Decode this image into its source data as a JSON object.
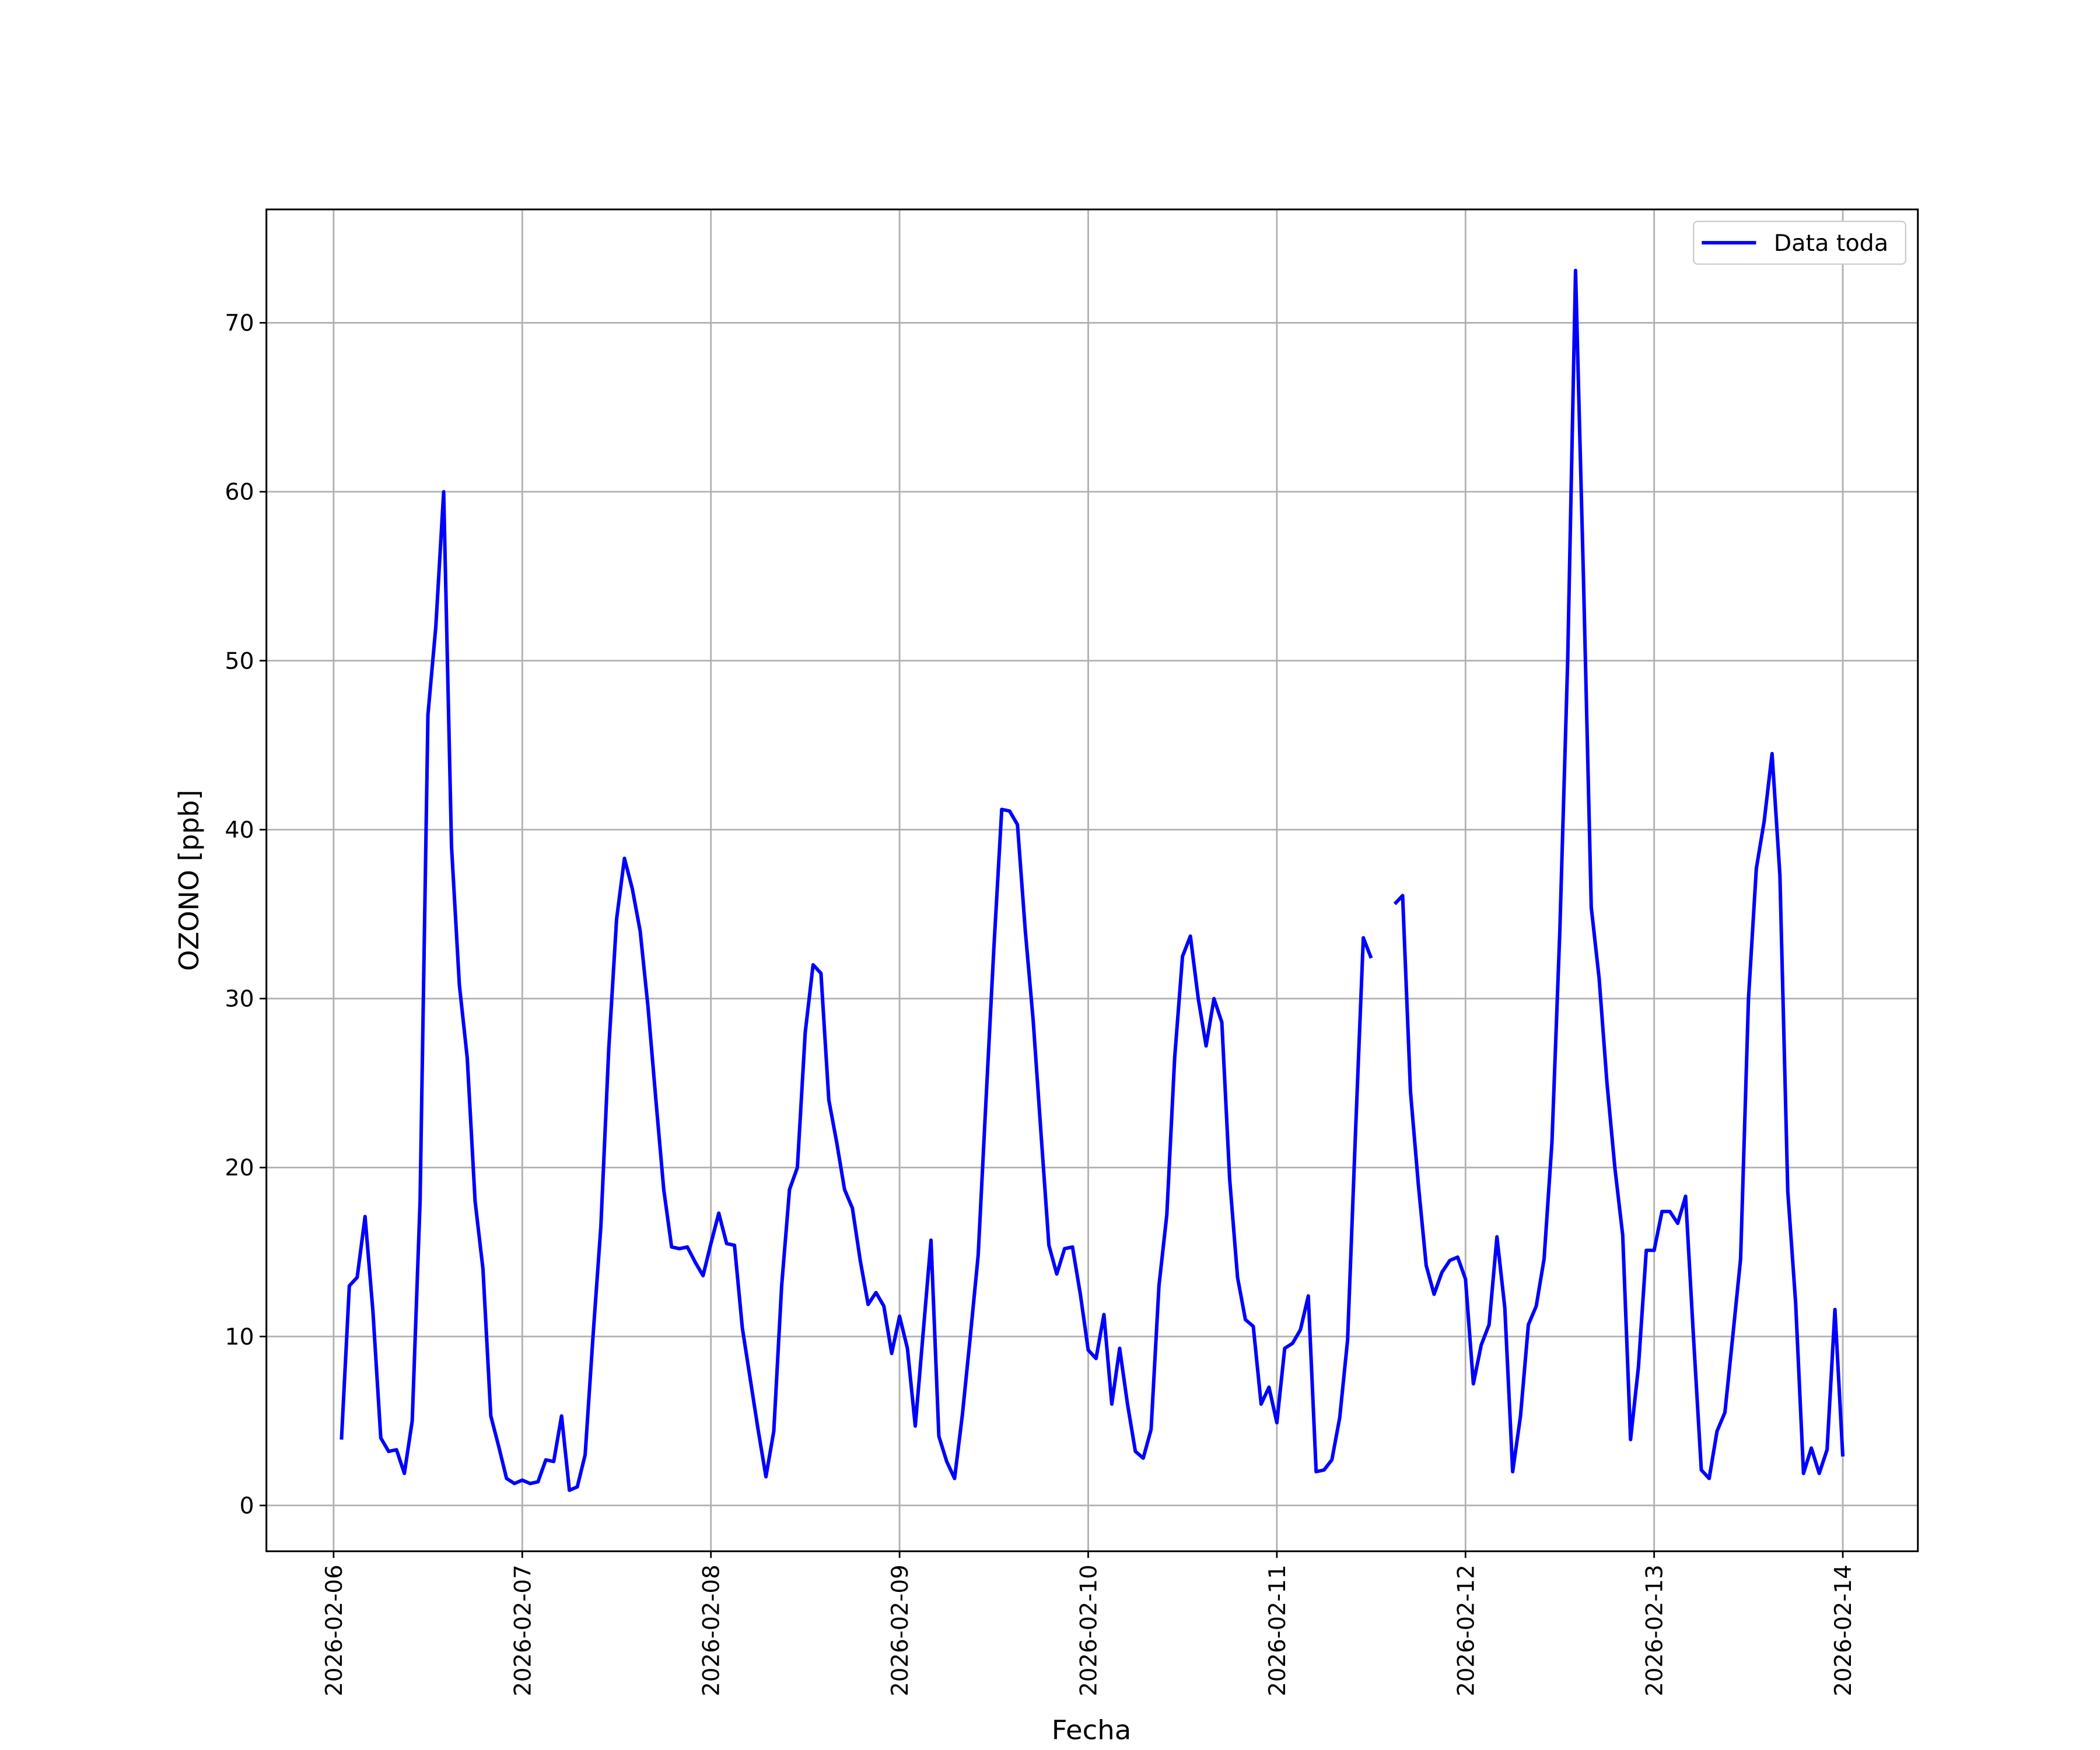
{
  "chart_data": {
    "type": "line",
    "xlabel": "Fecha",
    "ylabel": "OZONO [ppb]",
    "x": [
      "2026-02-06 01:00",
      "2026-02-06 02:00",
      "2026-02-06 03:00",
      "2026-02-06 04:00",
      "2026-02-06 05:00",
      "2026-02-06 06:00",
      "2026-02-06 07:00",
      "2026-02-06 08:00",
      "2026-02-06 09:00",
      "2026-02-06 10:00",
      "2026-02-06 11:00",
      "2026-02-06 12:00",
      "2026-02-06 13:00",
      "2026-02-06 14:00",
      "2026-02-06 15:00",
      "2026-02-06 16:00",
      "2026-02-06 17:00",
      "2026-02-06 18:00",
      "2026-02-06 19:00",
      "2026-02-06 20:00",
      "2026-02-06 21:00",
      "2026-02-06 22:00",
      "2026-02-06 23:00",
      "2026-02-07 00:00",
      "2026-02-07 01:00",
      "2026-02-07 02:00",
      "2026-02-07 03:00",
      "2026-02-07 04:00",
      "2026-02-07 05:00",
      "2026-02-07 06:00",
      "2026-02-07 07:00",
      "2026-02-07 08:00",
      "2026-02-07 09:00",
      "2026-02-07 10:00",
      "2026-02-07 11:00",
      "2026-02-07 12:00",
      "2026-02-07 13:00",
      "2026-02-07 14:00",
      "2026-02-07 15:00",
      "2026-02-07 16:00",
      "2026-02-07 17:00",
      "2026-02-07 18:00",
      "2026-02-07 19:00",
      "2026-02-07 20:00",
      "2026-02-07 21:00",
      "2026-02-07 22:00",
      "2026-02-07 23:00",
      "2026-02-08 00:00",
      "2026-02-08 01:00",
      "2026-02-08 02:00",
      "2026-02-08 03:00",
      "2026-02-08 04:00",
      "2026-02-08 05:00",
      "2026-02-08 06:00",
      "2026-02-08 07:00",
      "2026-02-08 08:00",
      "2026-02-08 09:00",
      "2026-02-08 10:00",
      "2026-02-08 11:00",
      "2026-02-08 12:00",
      "2026-02-08 13:00",
      "2026-02-08 14:00",
      "2026-02-08 15:00",
      "2026-02-08 16:00",
      "2026-02-08 17:00",
      "2026-02-08 18:00",
      "2026-02-08 19:00",
      "2026-02-08 20:00",
      "2026-02-08 21:00",
      "2026-02-08 22:00",
      "2026-02-08 23:00",
      "2026-02-09 00:00",
      "2026-02-09 01:00",
      "2026-02-09 02:00",
      "2026-02-09 03:00",
      "2026-02-09 04:00",
      "2026-02-09 05:00",
      "2026-02-09 06:00",
      "2026-02-09 07:00",
      "2026-02-09 08:00",
      "2026-02-09 09:00",
      "2026-02-09 10:00",
      "2026-02-09 11:00",
      "2026-02-09 12:00",
      "2026-02-09 13:00",
      "2026-02-09 14:00",
      "2026-02-09 15:00",
      "2026-02-09 16:00",
      "2026-02-09 17:00",
      "2026-02-09 18:00",
      "2026-02-09 19:00",
      "2026-02-09 20:00",
      "2026-02-09 21:00",
      "2026-02-09 22:00",
      "2026-02-09 23:00",
      "2026-02-10 00:00",
      "2026-02-10 01:00",
      "2026-02-10 02:00",
      "2026-02-10 03:00",
      "2026-02-10 04:00",
      "2026-02-10 05:00",
      "2026-02-10 06:00",
      "2026-02-10 07:00",
      "2026-02-10 08:00",
      "2026-02-10 09:00",
      "2026-02-10 10:00",
      "2026-02-10 11:00",
      "2026-02-10 12:00",
      "2026-02-10 13:00",
      "2026-02-10 14:00",
      "2026-02-10 15:00",
      "2026-02-10 16:00",
      "2026-02-10 17:00",
      "2026-02-10 18:00",
      "2026-02-10 19:00",
      "2026-02-10 20:00",
      "2026-02-10 21:00",
      "2026-02-10 22:00",
      "2026-02-10 23:00",
      "2026-02-11 00:00",
      "2026-02-11 01:00",
      "2026-02-11 02:00",
      "2026-02-11 03:00",
      "2026-02-11 04:00",
      "2026-02-11 05:00",
      "2026-02-11 06:00",
      "2026-02-11 07:00",
      "2026-02-11 08:00",
      "2026-02-11 09:00",
      "2026-02-11 10:00",
      "2026-02-11 11:00",
      "2026-02-11 12:00",
      "2026-02-11 13:00",
      "2026-02-11 14:00",
      "2026-02-11 15:00",
      "2026-02-11 16:00",
      "2026-02-11 17:00",
      "2026-02-11 18:00",
      "2026-02-11 19:00",
      "2026-02-11 20:00",
      "2026-02-11 21:00",
      "2026-02-11 22:00",
      "2026-02-11 23:00",
      "2026-02-12 00:00",
      "2026-02-12 01:00",
      "2026-02-12 02:00",
      "2026-02-12 03:00",
      "2026-02-12 04:00",
      "2026-02-12 05:00",
      "2026-02-12 06:00",
      "2026-02-12 07:00",
      "2026-02-12 08:00",
      "2026-02-12 09:00",
      "2026-02-12 10:00",
      "2026-02-12 11:00",
      "2026-02-12 12:00",
      "2026-02-12 13:00",
      "2026-02-12 14:00",
      "2026-02-12 15:00",
      "2026-02-12 16:00",
      "2026-02-12 17:00",
      "2026-02-12 18:00",
      "2026-02-12 19:00",
      "2026-02-12 20:00",
      "2026-02-12 21:00",
      "2026-02-12 22:00",
      "2026-02-12 23:00",
      "2026-02-13 00:00",
      "2026-02-13 01:00",
      "2026-02-13 02:00",
      "2026-02-13 03:00",
      "2026-02-13 04:00",
      "2026-02-13 05:00",
      "2026-02-13 06:00",
      "2026-02-13 07:00",
      "2026-02-13 08:00",
      "2026-02-13 09:00",
      "2026-02-13 10:00",
      "2026-02-13 11:00",
      "2026-02-13 12:00",
      "2026-02-13 13:00",
      "2026-02-13 14:00",
      "2026-02-13 15:00",
      "2026-02-13 16:00",
      "2026-02-13 17:00",
      "2026-02-13 18:00",
      "2026-02-13 19:00",
      "2026-02-13 20:00",
      "2026-02-13 21:00",
      "2026-02-13 22:00",
      "2026-02-13 23:00",
      "2026-02-14 00:00"
    ],
    "series": [
      {
        "name": "Data toda",
        "color": "#0000ff",
        "values": [
          3.9,
          13.0,
          13.5,
          17.1,
          11.5,
          4.0,
          3.2,
          3.3,
          1.9,
          5.0,
          18.0,
          46.8,
          52.0,
          60.0,
          39.0,
          30.8,
          26.5,
          18.0,
          14.0,
          5.3,
          3.5,
          1.6,
          1.3,
          1.5,
          1.3,
          1.4,
          2.7,
          2.6,
          5.3,
          0.9,
          1.1,
          3.0,
          10.0,
          16.5,
          27.0,
          34.7,
          38.3,
          36.5,
          34.0,
          29.5,
          24.0,
          18.7,
          15.3,
          15.2,
          15.3,
          14.4,
          13.6,
          15.5,
          17.3,
          15.5,
          15.4,
          10.5,
          7.5,
          4.5,
          1.7,
          4.4,
          13.0,
          18.7,
          20.0,
          28.0,
          32.0,
          31.5,
          24.0,
          21.5,
          18.7,
          17.6,
          14.5,
          11.9,
          12.6,
          11.8,
          9.0,
          11.2,
          9.3,
          4.7,
          10.2,
          15.7,
          4.1,
          2.6,
          1.6,
          5.4,
          10.0,
          14.8,
          24.0,
          33.0,
          41.2,
          41.1,
          40.3,
          34.0,
          28.7,
          22.0,
          15.4,
          13.7,
          15.2,
          15.3,
          12.5,
          9.2,
          8.7,
          11.3,
          6.0,
          9.3,
          6.0,
          3.2,
          2.8,
          4.5,
          13.0,
          17.2,
          26.5,
          32.5,
          33.7,
          30.0,
          27.2,
          30.0,
          28.6,
          19.3,
          13.5,
          11.0,
          10.6,
          6.0,
          7.0,
          4.9,
          9.3,
          9.6,
          10.4,
          12.4,
          2.0,
          2.1,
          2.7,
          5.2,
          9.8,
          22.0,
          33.6,
          32.4,
          null,
          null,
          35.6,
          36.1,
          24.5,
          19.0,
          14.2,
          12.5,
          13.8,
          14.5,
          14.7,
          13.4,
          7.2,
          9.5,
          10.7,
          15.9,
          11.7,
          2.0,
          5.3,
          10.7,
          11.8,
          14.6,
          21.5,
          34.0,
          50.0,
          73.1,
          55.0,
          35.4,
          31.2,
          25.0,
          20.0,
          16.0,
          3.9,
          8.2,
          15.1,
          15.1,
          17.4,
          17.4,
          16.7,
          18.3,
          10.0,
          2.1,
          1.6,
          4.4,
          5.5,
          10.0,
          14.6,
          30.0,
          37.7,
          40.5,
          44.5,
          37.3,
          18.6,
          12.0,
          1.9,
          3.4,
          1.9,
          3.3,
          11.6,
          2.9
        ]
      }
    ],
    "xlim": [
      "2026-02-05 15:27",
      "2026-02-14 09:33"
    ],
    "xticks": [
      "2026-02-06",
      "2026-02-07",
      "2026-02-08",
      "2026-02-09",
      "2026-02-10",
      "2026-02-11",
      "2026-02-12",
      "2026-02-13",
      "2026-02-14"
    ],
    "ylim": [
      -2.71,
      76.71
    ],
    "yticks": [
      0,
      10,
      20,
      30,
      40,
      50,
      60,
      70
    ],
    "grid": true,
    "legend": "upper right"
  }
}
